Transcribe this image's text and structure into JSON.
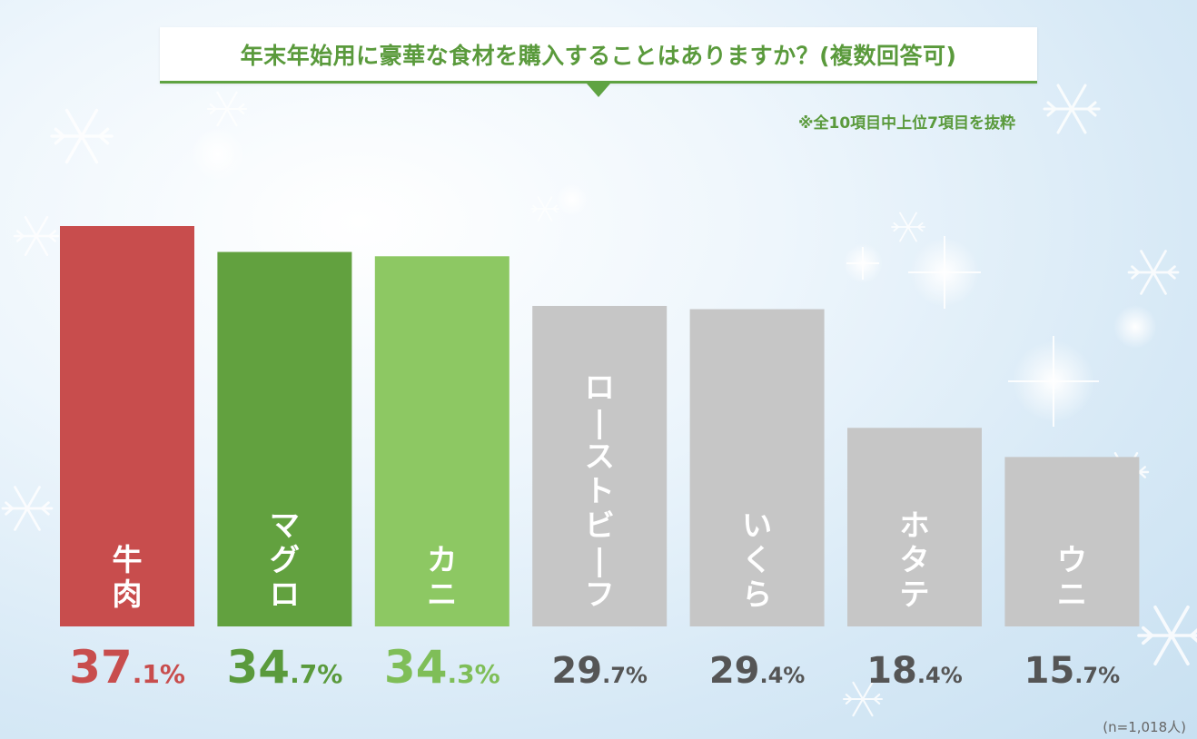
{
  "title": "年末年始用に豪華な食材を購入することはありますか？(複数回答可)",
  "note": "※全10項目中上位7項目を抜粋",
  "sample_note": "(n=1,018人)",
  "colors": {
    "accent": "#5a9a3c",
    "beef": "#c84d4d",
    "tuna": "#62a13f",
    "crab": "#8dc863",
    "other": "#c6c6c6",
    "other_text": "#555555"
  },
  "chart_data": {
    "type": "bar",
    "categories": [
      "牛肉",
      "マグロ",
      "カニ",
      "ローストビーフ",
      "いくら",
      "ホタテ",
      "ウニ"
    ],
    "values": [
      37.1,
      34.7,
      34.3,
      29.7,
      29.4,
      18.4,
      15.7
    ],
    "value_labels": [
      {
        "int": "37",
        "dec": ".1%"
      },
      {
        "int": "34",
        "dec": ".7%"
      },
      {
        "int": "34",
        "dec": ".3%"
      },
      {
        "int": "29",
        "dec": ".7%"
      },
      {
        "int": "29",
        "dec": ".4%"
      },
      {
        "int": "18",
        "dec": ".4%"
      },
      {
        "int": "15",
        "dec": ".7%"
      }
    ],
    "bar_colors": [
      "#c84d4d",
      "#62a13f",
      "#8dc863",
      "#c6c6c6",
      "#c6c6c6",
      "#c6c6c6",
      "#c6c6c6"
    ],
    "value_colors": [
      "#c84d4d",
      "#5a9a3c",
      "#7fbe58",
      "#555555",
      "#555555",
      "#555555",
      "#555555"
    ],
    "ylim": [
      0,
      40
    ],
    "xlabel": "",
    "ylabel": ""
  }
}
